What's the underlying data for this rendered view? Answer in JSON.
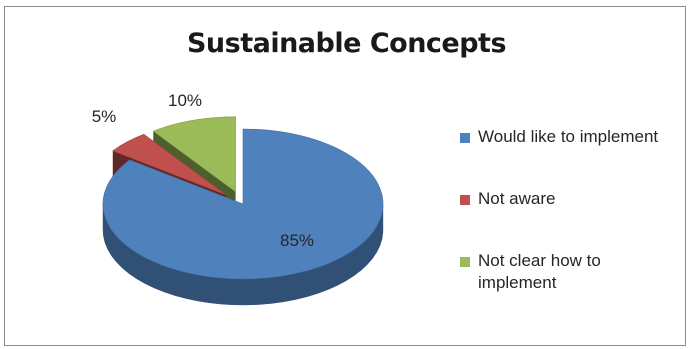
{
  "chart_data": {
    "type": "pie",
    "title": "Sustainable Concepts",
    "categories": [
      "Would like to implement",
      "Not aware",
      "Not clear how to implement"
    ],
    "values": [
      85,
      5,
      10
    ],
    "data_labels": [
      "85%",
      "5%",
      "10%"
    ],
    "colors": [
      "#4f81bd",
      "#c0504d",
      "#9bbb59"
    ],
    "legend_placement": "right",
    "three_d": true,
    "exploded": [
      "Not aware",
      "Not clear how to implement"
    ]
  }
}
